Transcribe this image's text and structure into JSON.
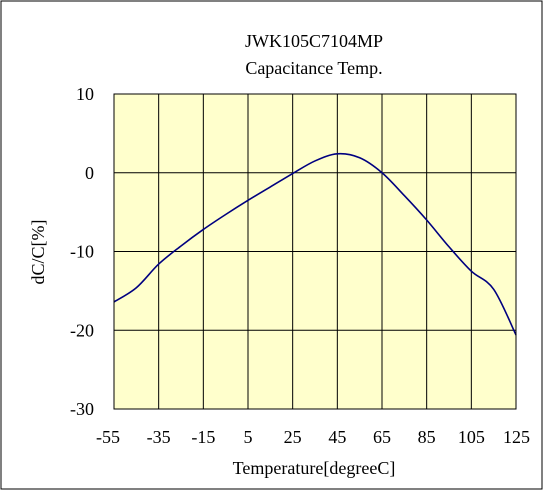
{
  "chart_data": {
    "type": "line",
    "title": "JWK105C7104MP",
    "subtitle": "Capacitance Temp.",
    "xlabel": "Temperature[degreeC]",
    "ylabel": "dC/C[%]",
    "xlim": [
      -55,
      125
    ],
    "ylim": [
      -30,
      10
    ],
    "xticks": [
      -55,
      -35,
      -15,
      5,
      25,
      45,
      65,
      85,
      105,
      125
    ],
    "yticks": [
      -30,
      -20,
      -10,
      0,
      10
    ],
    "grid": true,
    "series": [
      {
        "x": [
          -55,
          -45,
          -35,
          -25,
          -15,
          -5,
          5,
          15,
          25,
          35,
          45,
          55,
          65,
          75,
          85,
          95,
          105,
          115,
          125
        ],
        "y": [
          -16.4,
          -14.6,
          -11.6,
          -9.3,
          -7.2,
          -5.3,
          -3.5,
          -1.8,
          -0.1,
          1.5,
          2.4,
          1.9,
          0.0,
          -2.9,
          -6.0,
          -9.4,
          -12.5,
          -14.8,
          -20.6
        ]
      }
    ],
    "colors": {
      "plot_background": "#ffffcc",
      "line": "#000080",
      "grid": "#000000",
      "frame": "#000000"
    }
  }
}
